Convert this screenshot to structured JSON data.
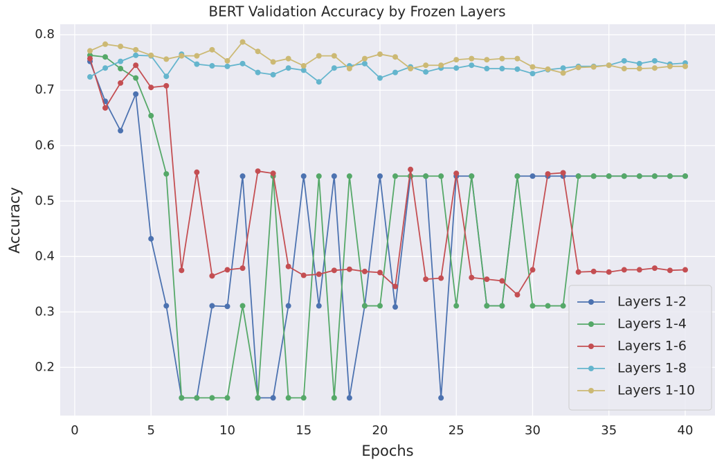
{
  "chart_data": {
    "type": "line",
    "title": "BERT Validation Accuracy by Frozen Layers",
    "xlabel": "Epochs",
    "ylabel": "Accuracy",
    "x": [
      1,
      2,
      3,
      4,
      5,
      6,
      7,
      8,
      9,
      10,
      11,
      12,
      13,
      14,
      15,
      16,
      17,
      18,
      19,
      20,
      21,
      22,
      23,
      24,
      25,
      26,
      27,
      28,
      29,
      30,
      31,
      32,
      33,
      34,
      35,
      36,
      37,
      38,
      39,
      40
    ],
    "series": [
      {
        "name": "Layers 1-2",
        "color": "#4c72b0",
        "values": [
          0.752,
          0.68,
          0.627,
          0.693,
          0.432,
          0.311,
          0.145,
          0.145,
          0.311,
          0.31,
          0.545,
          0.145,
          0.145,
          0.311,
          0.545,
          0.311,
          0.545,
          0.145,
          0.311,
          0.545,
          0.309,
          0.545,
          0.545,
          0.145,
          0.545,
          0.545,
          0.311,
          0.311,
          0.545,
          0.545,
          0.545,
          0.545,
          0.545,
          0.545,
          0.545,
          0.545,
          0.545,
          0.545,
          0.545,
          0.545
        ]
      },
      {
        "name": "Layers 1-4",
        "color": "#55a868",
        "values": [
          0.763,
          0.76,
          0.739,
          0.722,
          0.654,
          0.549,
          0.145,
          0.145,
          0.145,
          0.145,
          0.311,
          0.145,
          0.545,
          0.145,
          0.145,
          0.545,
          0.145,
          0.545,
          0.311,
          0.311,
          0.545,
          0.545,
          0.545,
          0.545,
          0.311,
          0.545,
          0.311,
          0.311,
          0.545,
          0.311,
          0.311,
          0.311,
          0.545,
          0.545,
          0.545,
          0.545,
          0.545,
          0.545,
          0.545,
          0.545
        ]
      },
      {
        "name": "Layers 1-6",
        "color": "#c44e52",
        "values": [
          0.757,
          0.668,
          0.713,
          0.745,
          0.705,
          0.708,
          0.375,
          0.552,
          0.365,
          0.376,
          0.379,
          0.554,
          0.55,
          0.382,
          0.366,
          0.368,
          0.375,
          0.377,
          0.373,
          0.371,
          0.346,
          0.557,
          0.359,
          0.361,
          0.55,
          0.362,
          0.359,
          0.356,
          0.331,
          0.376,
          0.549,
          0.551,
          0.372,
          0.373,
          0.372,
          0.376,
          0.376,
          0.379,
          0.375,
          0.376
        ]
      },
      {
        "name": "Layers 1-8",
        "color": "#64b5cd",
        "values": [
          0.724,
          0.74,
          0.752,
          0.763,
          0.762,
          0.725,
          0.765,
          0.747,
          0.744,
          0.743,
          0.748,
          0.732,
          0.728,
          0.74,
          0.736,
          0.715,
          0.74,
          0.744,
          0.748,
          0.722,
          0.732,
          0.742,
          0.733,
          0.74,
          0.74,
          0.745,
          0.739,
          0.739,
          0.738,
          0.73,
          0.737,
          0.74,
          0.743,
          0.743,
          0.745,
          0.753,
          0.748,
          0.753,
          0.747,
          0.749
        ]
      },
      {
        "name": "Layers 1-10",
        "color": "#ccb974",
        "values": [
          0.771,
          0.783,
          0.779,
          0.773,
          0.763,
          0.756,
          0.762,
          0.762,
          0.773,
          0.753,
          0.787,
          0.77,
          0.751,
          0.757,
          0.744,
          0.762,
          0.762,
          0.739,
          0.757,
          0.765,
          0.76,
          0.739,
          0.745,
          0.745,
          0.755,
          0.757,
          0.755,
          0.757,
          0.757,
          0.742,
          0.738,
          0.731,
          0.741,
          0.742,
          0.745,
          0.739,
          0.739,
          0.74,
          0.743,
          0.743
        ]
      }
    ],
    "xlim": [
      -0.95,
      41.95
    ],
    "xticks": [
      0,
      5,
      10,
      15,
      20,
      25,
      30,
      35,
      40
    ],
    "ylim": [
      0.113,
      0.819
    ],
    "yticks": [
      0.2,
      0.3,
      0.4,
      0.5,
      0.6,
      0.7,
      0.8
    ],
    "grid": true,
    "legend": "lower right"
  }
}
